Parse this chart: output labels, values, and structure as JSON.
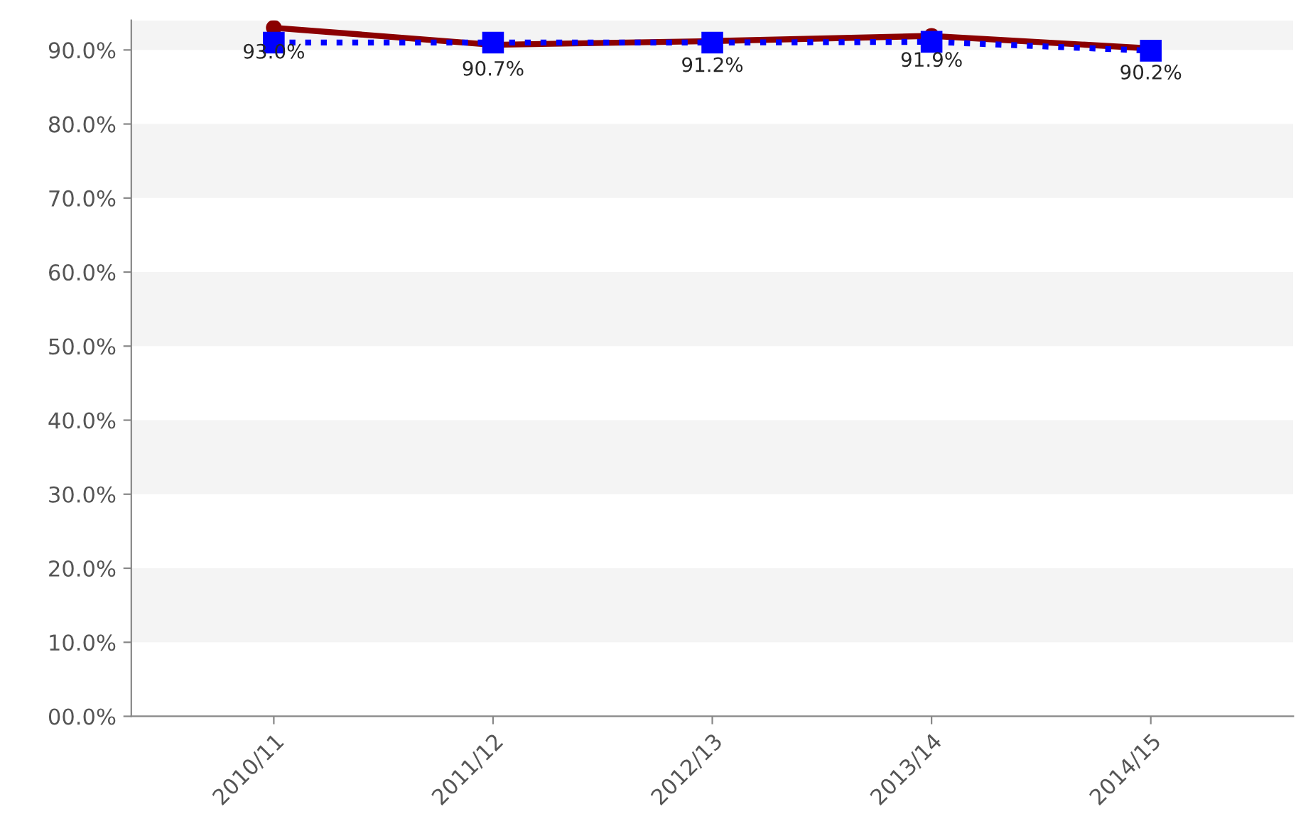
{
  "chart_data": {
    "type": "line",
    "categories": [
      "2010/11",
      "2011/12",
      "2012/13",
      "2013/14",
      "2014/15"
    ],
    "series": [
      {
        "color": "#8b0000",
        "values": [
          93.0,
          90.7,
          91.2,
          91.9,
          90.2
        ],
        "value_labels": [
          "93.0%",
          "90.7%",
          "91.2%",
          "91.9%",
          "90.2%"
        ],
        "marker": "circle",
        "line_style": "solid"
      },
      {
        "color": "#0000ff",
        "values": [
          91.0,
          91.0,
          91.0,
          91.1,
          89.9
        ],
        "marker": "square",
        "line_style": "dotted"
      }
    ],
    "ylim": [
      0,
      94
    ],
    "yticks": [
      {
        "value": 0,
        "label": "00.0%"
      },
      {
        "value": 10,
        "label": "10.0%"
      },
      {
        "value": 20,
        "label": "20.0%"
      },
      {
        "value": 30,
        "label": "30.0%"
      },
      {
        "value": 40,
        "label": "40.0%"
      },
      {
        "value": 50,
        "label": "50.0%"
      },
      {
        "value": 60,
        "label": "60.0%"
      },
      {
        "value": 70,
        "label": "70.0%"
      },
      {
        "value": 80,
        "label": "80.0%"
      },
      {
        "value": 90,
        "label": "90.0%"
      }
    ],
    "bands": [
      {
        "axis": "y",
        "from": 10,
        "to": 20,
        "color": "#f4f4f4"
      },
      {
        "axis": "y",
        "from": 30,
        "to": 40,
        "color": "#f4f4f4"
      },
      {
        "axis": "y",
        "from": 50,
        "to": 60,
        "color": "#f4f4f4"
      },
      {
        "axis": "y",
        "from": 70,
        "to": 80,
        "color": "#f4f4f4"
      },
      {
        "axis": "y",
        "from": 90,
        "to": 94,
        "color": "#f4f4f4"
      }
    ],
    "grid": false
  }
}
